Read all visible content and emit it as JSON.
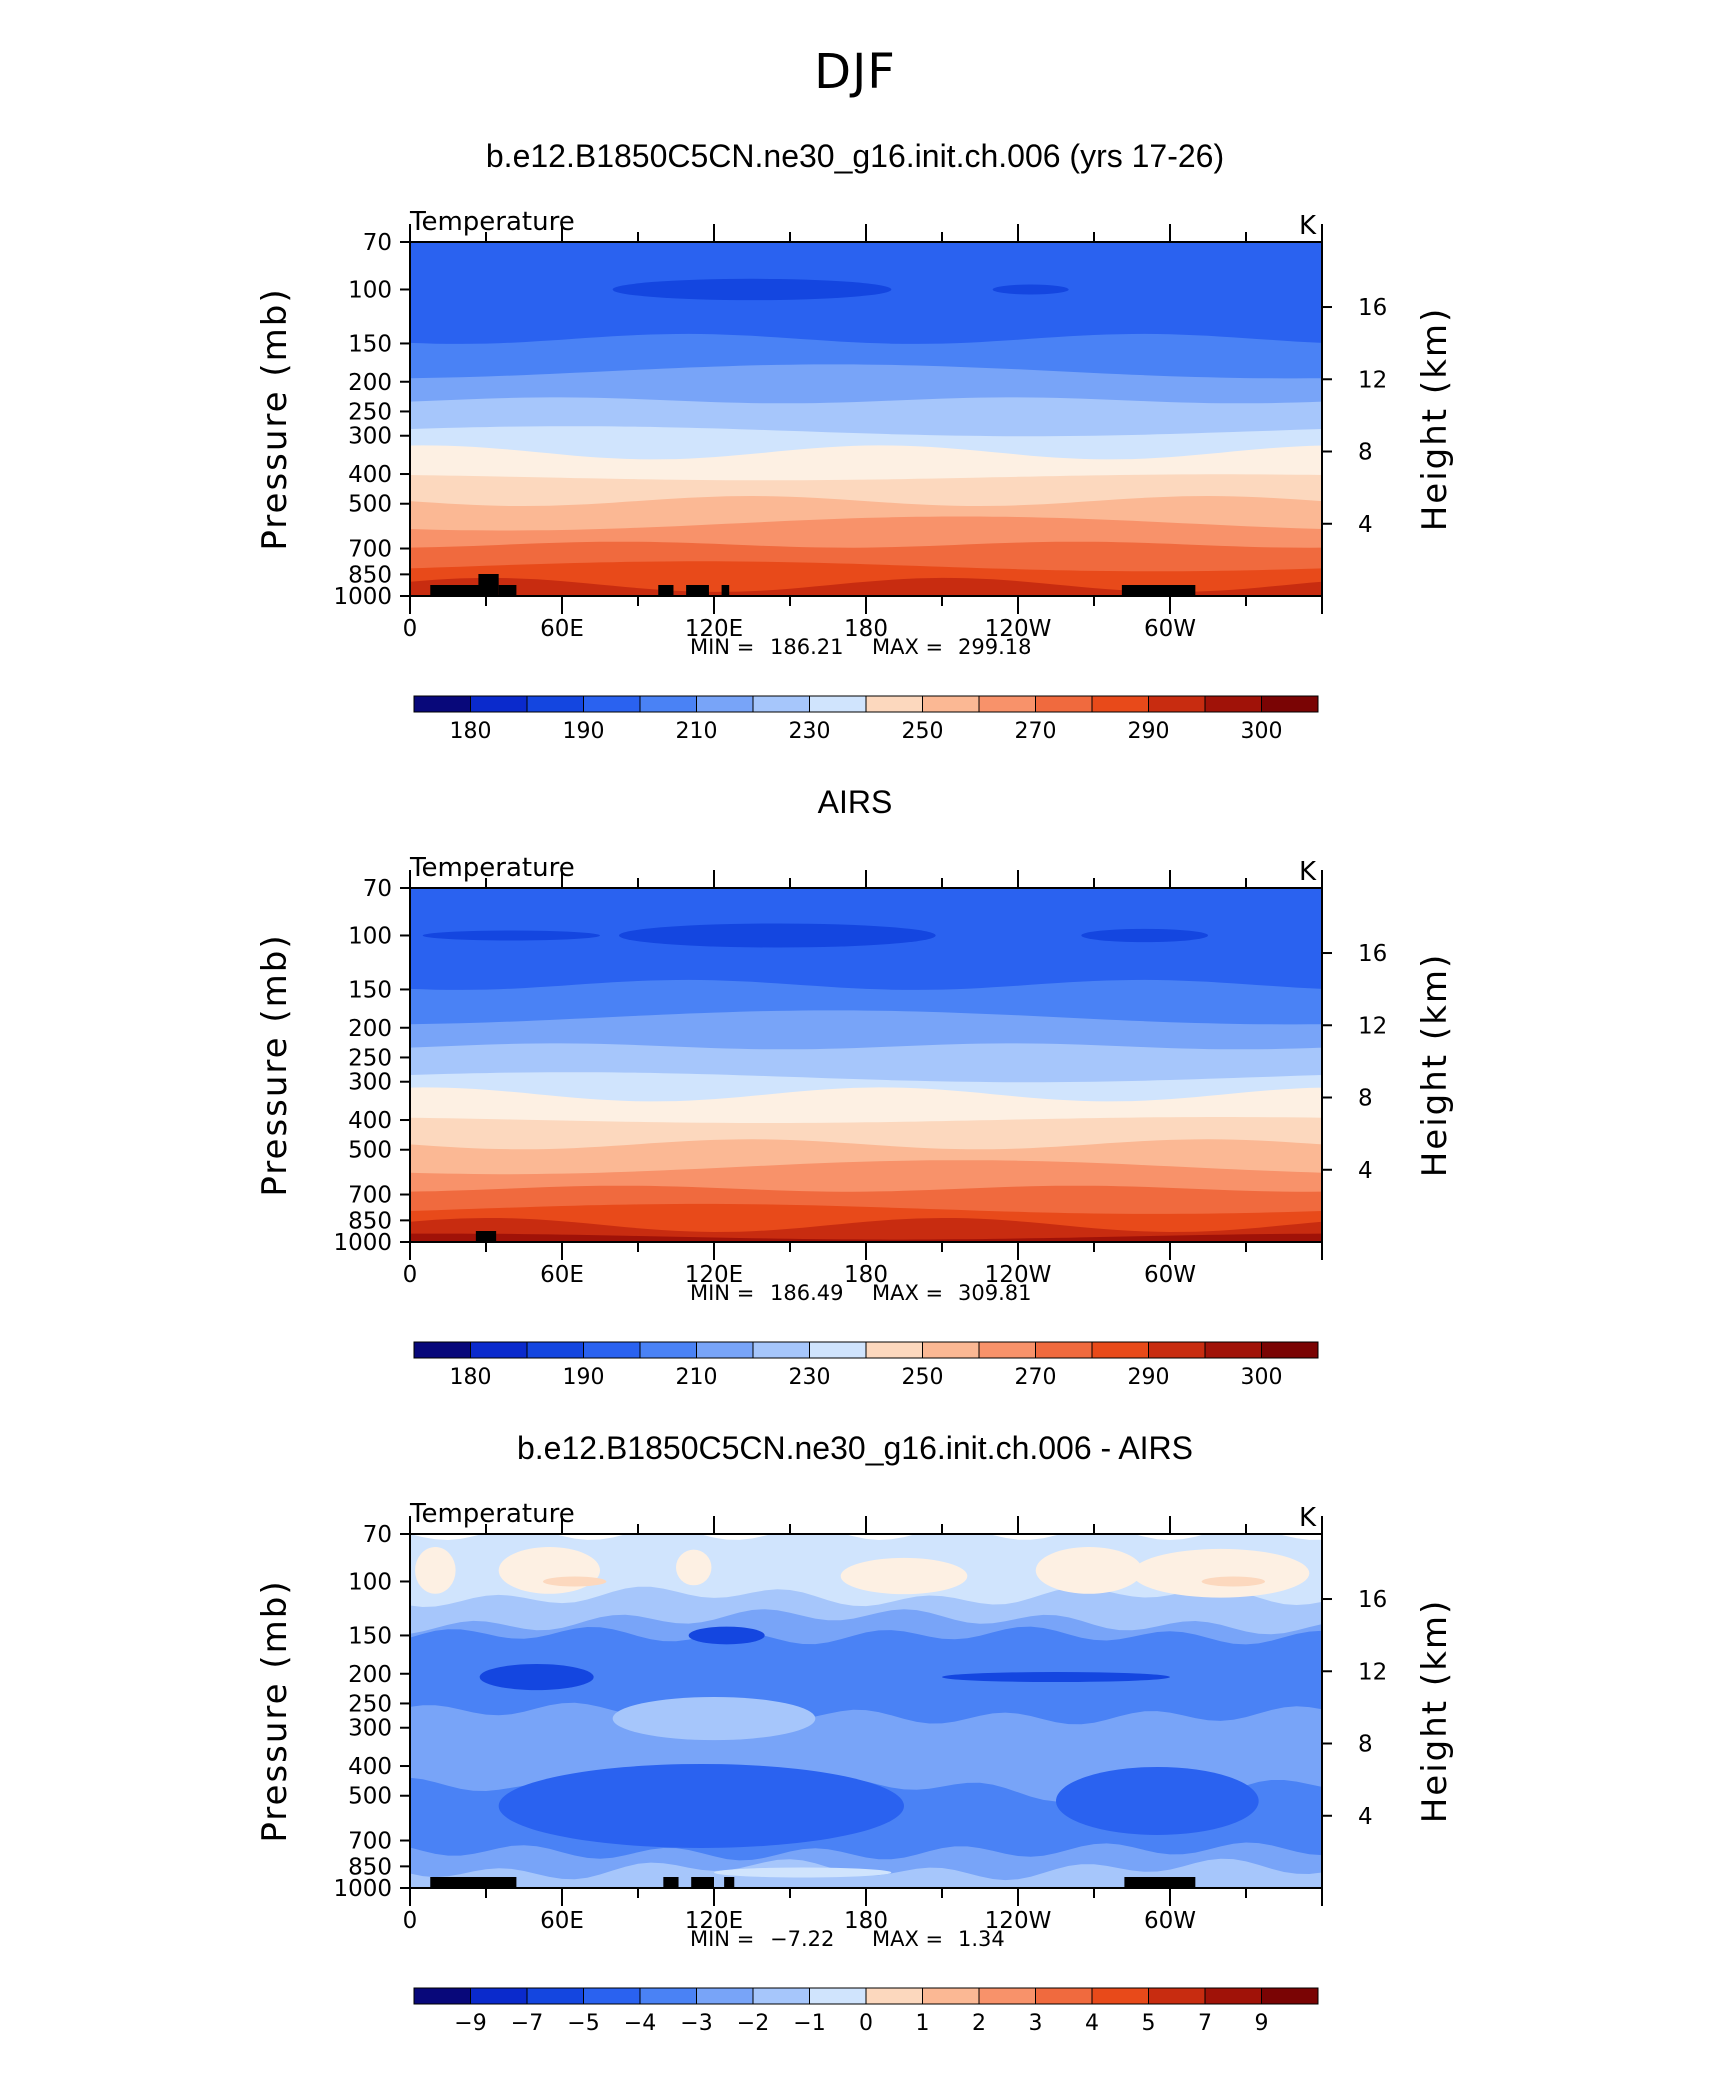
{
  "page": {
    "title": "DJF"
  },
  "colors": {
    "palette": [
      "#08087a",
      "#0a2acc",
      "#1446e0",
      "#2a62f0",
      "#4a82f5",
      "#78a4f8",
      "#a6c6fb",
      "#d0e4fd",
      "#fdf0e3",
      "#fcd8be",
      "#fbb894",
      "#f8926a",
      "#f06a3e",
      "#e84a1a",
      "#c82c10",
      "#a01208",
      "#7a0404"
    ],
    "land_mask": "#000000"
  },
  "chart_data": [
    {
      "type": "contour",
      "title": "b.e12.B1850C5CN.ne30_g16.init.ch.006 (yrs 17-26)",
      "left_label": "Temperature",
      "units": "K",
      "ylabel": "Pressure (mb)",
      "ylabel_right": "Height (km)",
      "y_ticks": [
        "70",
        "100",
        "150",
        "200",
        "250",
        "300",
        "400",
        "500",
        "700",
        "850",
        "1000"
      ],
      "y_tick_values": [
        70,
        100,
        150,
        200,
        250,
        300,
        400,
        500,
        700,
        850,
        1000
      ],
      "y_right_ticks": [
        "16",
        "12",
        "8",
        "4"
      ],
      "y_right_values": [
        16,
        12,
        8,
        4
      ],
      "x_ticks": [
        "0",
        "60E",
        "120E",
        "180",
        "120W",
        "60W"
      ],
      "x_tick_values": [
        0,
        60,
        120,
        180,
        240,
        300
      ],
      "xlim": [
        0,
        360
      ],
      "ylim": [
        1000,
        70
      ],
      "min_label": "MIN =",
      "min_value": "186.21",
      "max_label": "MAX =",
      "max_value": "299.18",
      "colorbar_labels": [
        "180",
        "190",
        "210",
        "230",
        "250",
        "270",
        "290",
        "300"
      ],
      "levels": [
        {
          "p": 70,
          "color_index": 3
        },
        {
          "p": 145,
          "color_index": 4
        },
        {
          "p": 185,
          "color_index": 5
        },
        {
          "p": 230,
          "color_index": 6
        },
        {
          "p": 290,
          "color_index": 7
        },
        {
          "p": 340,
          "color_index": 8
        },
        {
          "p": 410,
          "color_index": 9
        },
        {
          "p": 490,
          "color_index": 10
        },
        {
          "p": 580,
          "color_index": 11
        },
        {
          "p": 680,
          "color_index": 12
        },
        {
          "p": 800,
          "color_index": 13
        },
        {
          "p": 920,
          "color_index": 14
        }
      ],
      "blobs": [
        {
          "lon": 135,
          "p": 100,
          "width_lon": 110,
          "height_p": 16,
          "color_index": 2
        },
        {
          "lon": 245,
          "p": 100,
          "width_lon": 30,
          "height_p": 7,
          "color_index": 2
        }
      ],
      "terrain": [
        [
          8,
          28
        ],
        [
          27,
          35
        ],
        [
          35,
          42
        ],
        [
          98,
          104
        ],
        [
          109,
          118
        ],
        [
          123,
          126
        ],
        [
          281,
          310
        ]
      ]
    },
    {
      "type": "contour",
      "title": "AIRS",
      "left_label": "Temperature",
      "units": "K",
      "ylabel": "Pressure (mb)",
      "ylabel_right": "Height (km)",
      "y_ticks": [
        "70",
        "100",
        "150",
        "200",
        "250",
        "300",
        "400",
        "500",
        "700",
        "850",
        "1000"
      ],
      "y_tick_values": [
        70,
        100,
        150,
        200,
        250,
        300,
        400,
        500,
        700,
        850,
        1000
      ],
      "y_right_ticks": [
        "16",
        "12",
        "8",
        "4"
      ],
      "y_right_values": [
        16,
        12,
        8,
        4
      ],
      "x_ticks": [
        "0",
        "60E",
        "120E",
        "180",
        "120W",
        "60W"
      ],
      "x_tick_values": [
        0,
        60,
        120,
        180,
        240,
        300
      ],
      "xlim": [
        0,
        360
      ],
      "ylim": [
        1000,
        70
      ],
      "min_label": "MIN =",
      "min_value": "186.49",
      "max_label": "MAX =",
      "max_value": "309.81",
      "colorbar_labels": [
        "180",
        "190",
        "210",
        "230",
        "250",
        "270",
        "290",
        "300"
      ],
      "levels": [
        {
          "p": 70,
          "color_index": 3
        },
        {
          "p": 145,
          "color_index": 4
        },
        {
          "p": 185,
          "color_index": 5
        },
        {
          "p": 230,
          "color_index": 6
        },
        {
          "p": 290,
          "color_index": 7
        },
        {
          "p": 330,
          "color_index": 8
        },
        {
          "p": 400,
          "color_index": 9
        },
        {
          "p": 480,
          "color_index": 10
        },
        {
          "p": 570,
          "color_index": 11
        },
        {
          "p": 670,
          "color_index": 12
        },
        {
          "p": 780,
          "color_index": 13
        },
        {
          "p": 880,
          "color_index": 14
        },
        {
          "p": 960,
          "color_index": 15
        }
      ],
      "blobs": [
        {
          "lon": 145,
          "p": 100,
          "width_lon": 125,
          "height_p": 18,
          "color_index": 2
        },
        {
          "lon": 40,
          "p": 100,
          "width_lon": 70,
          "height_p": 6,
          "color_index": 2
        },
        {
          "lon": 290,
          "p": 100,
          "width_lon": 50,
          "height_p": 10,
          "color_index": 2
        }
      ],
      "terrain": [
        [
          26,
          34
        ]
      ]
    },
    {
      "type": "contour",
      "title": "b.e12.B1850C5CN.ne30_g16.init.ch.006 - AIRS",
      "left_label": "Temperature",
      "units": "K",
      "ylabel": "Pressure (mb)",
      "ylabel_right": "Height (km)",
      "y_ticks": [
        "70",
        "100",
        "150",
        "200",
        "250",
        "300",
        "400",
        "500",
        "700",
        "850",
        "1000"
      ],
      "y_tick_values": [
        70,
        100,
        150,
        200,
        250,
        300,
        400,
        500,
        700,
        850,
        1000
      ],
      "y_right_ticks": [
        "16",
        "12",
        "8",
        "4"
      ],
      "y_right_values": [
        16,
        12,
        8,
        4
      ],
      "x_ticks": [
        "0",
        "60E",
        "120E",
        "180",
        "120W",
        "60W"
      ],
      "x_tick_values": [
        0,
        60,
        120,
        180,
        240,
        300
      ],
      "xlim": [
        0,
        360
      ],
      "ylim": [
        1000,
        70
      ],
      "min_label": "MIN =",
      "min_value": "−7.22",
      "max_label": "MAX =",
      "max_value": "1.34",
      "colorbar_labels": [
        "−9",
        "−7",
        "−5",
        "−4",
        "−3",
        "−2",
        "−1",
        "0",
        "1",
        "2",
        "3",
        "4",
        "5",
        "7",
        "9"
      ],
      "levels": [
        {
          "p": 70,
          "color_index": 7
        },
        {
          "p": 112,
          "color_index": 6
        },
        {
          "p": 135,
          "color_index": 5
        },
        {
          "p": 150,
          "color_index": 4
        },
        {
          "p": 270,
          "color_index": 5
        },
        {
          "p": 480,
          "color_index": 4
        },
        {
          "p": 760,
          "color_index": 5
        },
        {
          "p": 870,
          "color_index": 6
        }
      ],
      "blobs": [
        {
          "lon": 10,
          "p": 92,
          "width_lon": 16,
          "height_p": 32,
          "color_index": 8
        },
        {
          "lon": 55,
          "p": 92,
          "width_lon": 40,
          "height_p": 32,
          "color_index": 8
        },
        {
          "lon": 112,
          "p": 90,
          "width_lon": 14,
          "height_p": 24,
          "color_index": 8
        },
        {
          "lon": 195,
          "p": 96,
          "width_lon": 50,
          "height_p": 26,
          "color_index": 8
        },
        {
          "lon": 268,
          "p": 92,
          "width_lon": 42,
          "height_p": 32,
          "color_index": 8
        },
        {
          "lon": 320,
          "p": 94,
          "width_lon": 70,
          "height_p": 34,
          "color_index": 8
        },
        {
          "lon": 65,
          "p": 100,
          "width_lon": 25,
          "height_p": 6,
          "color_index": 9
        },
        {
          "lon": 325,
          "p": 100,
          "width_lon": 25,
          "height_p": 7,
          "color_index": 9
        },
        {
          "lon": 120,
          "p": 280,
          "width_lon": 80,
          "height_p": 90,
          "color_index": 6
        },
        {
          "lon": 255,
          "p": 205,
          "width_lon": 90,
          "height_p": 10,
          "color_index": 2
        },
        {
          "lon": 50,
          "p": 205,
          "width_lon": 45,
          "height_p": 40,
          "color_index": 2
        },
        {
          "lon": 125,
          "p": 150,
          "width_lon": 30,
          "height_p": 20,
          "color_index": 2
        },
        {
          "lon": 115,
          "p": 540,
          "width_lon": 160,
          "height_p": 330,
          "color_index": 3
        },
        {
          "lon": 295,
          "p": 520,
          "width_lon": 80,
          "height_p": 260,
          "color_index": 3
        },
        {
          "lon": 155,
          "p": 890,
          "width_lon": 70,
          "height_p": 60,
          "color_index": 7
        }
      ],
      "terrain": [
        [
          8,
          42
        ],
        [
          27,
          41
        ],
        [
          100,
          106
        ],
        [
          111,
          120
        ],
        [
          124,
          128
        ],
        [
          282,
          310
        ]
      ]
    }
  ]
}
